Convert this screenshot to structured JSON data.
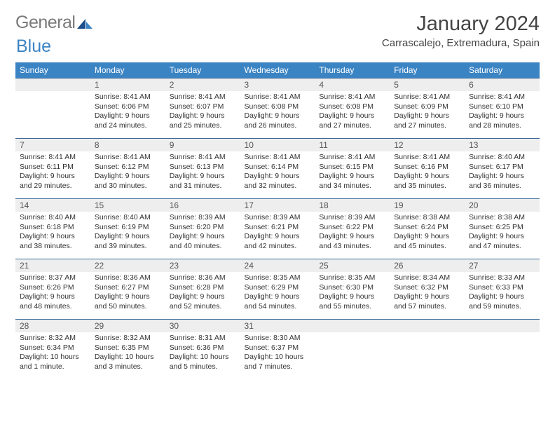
{
  "brand": {
    "part1": "General",
    "part2": "Blue"
  },
  "title": "January 2024",
  "location": "Carrascalejo, Extremadura, Spain",
  "colors": {
    "header_bg": "#3b84c4",
    "header_text": "#ffffff",
    "daynum_bg": "#eeeeee",
    "rule": "#3b6a9a",
    "body_text": "#333333"
  },
  "weekdays": [
    "Sunday",
    "Monday",
    "Tuesday",
    "Wednesday",
    "Thursday",
    "Friday",
    "Saturday"
  ],
  "weeks": [
    [
      null,
      {
        "n": "1",
        "sr": "Sunrise: 8:41 AM",
        "ss": "Sunset: 6:06 PM",
        "dl": "Daylight: 9 hours and 24 minutes."
      },
      {
        "n": "2",
        "sr": "Sunrise: 8:41 AM",
        "ss": "Sunset: 6:07 PM",
        "dl": "Daylight: 9 hours and 25 minutes."
      },
      {
        "n": "3",
        "sr": "Sunrise: 8:41 AM",
        "ss": "Sunset: 6:08 PM",
        "dl": "Daylight: 9 hours and 26 minutes."
      },
      {
        "n": "4",
        "sr": "Sunrise: 8:41 AM",
        "ss": "Sunset: 6:08 PM",
        "dl": "Daylight: 9 hours and 27 minutes."
      },
      {
        "n": "5",
        "sr": "Sunrise: 8:41 AM",
        "ss": "Sunset: 6:09 PM",
        "dl": "Daylight: 9 hours and 27 minutes."
      },
      {
        "n": "6",
        "sr": "Sunrise: 8:41 AM",
        "ss": "Sunset: 6:10 PM",
        "dl": "Daylight: 9 hours and 28 minutes."
      }
    ],
    [
      {
        "n": "7",
        "sr": "Sunrise: 8:41 AM",
        "ss": "Sunset: 6:11 PM",
        "dl": "Daylight: 9 hours and 29 minutes."
      },
      {
        "n": "8",
        "sr": "Sunrise: 8:41 AM",
        "ss": "Sunset: 6:12 PM",
        "dl": "Daylight: 9 hours and 30 minutes."
      },
      {
        "n": "9",
        "sr": "Sunrise: 8:41 AM",
        "ss": "Sunset: 6:13 PM",
        "dl": "Daylight: 9 hours and 31 minutes."
      },
      {
        "n": "10",
        "sr": "Sunrise: 8:41 AM",
        "ss": "Sunset: 6:14 PM",
        "dl": "Daylight: 9 hours and 32 minutes."
      },
      {
        "n": "11",
        "sr": "Sunrise: 8:41 AM",
        "ss": "Sunset: 6:15 PM",
        "dl": "Daylight: 9 hours and 34 minutes."
      },
      {
        "n": "12",
        "sr": "Sunrise: 8:41 AM",
        "ss": "Sunset: 6:16 PM",
        "dl": "Daylight: 9 hours and 35 minutes."
      },
      {
        "n": "13",
        "sr": "Sunrise: 8:40 AM",
        "ss": "Sunset: 6:17 PM",
        "dl": "Daylight: 9 hours and 36 minutes."
      }
    ],
    [
      {
        "n": "14",
        "sr": "Sunrise: 8:40 AM",
        "ss": "Sunset: 6:18 PM",
        "dl": "Daylight: 9 hours and 38 minutes."
      },
      {
        "n": "15",
        "sr": "Sunrise: 8:40 AM",
        "ss": "Sunset: 6:19 PM",
        "dl": "Daylight: 9 hours and 39 minutes."
      },
      {
        "n": "16",
        "sr": "Sunrise: 8:39 AM",
        "ss": "Sunset: 6:20 PM",
        "dl": "Daylight: 9 hours and 40 minutes."
      },
      {
        "n": "17",
        "sr": "Sunrise: 8:39 AM",
        "ss": "Sunset: 6:21 PM",
        "dl": "Daylight: 9 hours and 42 minutes."
      },
      {
        "n": "18",
        "sr": "Sunrise: 8:39 AM",
        "ss": "Sunset: 6:22 PM",
        "dl": "Daylight: 9 hours and 43 minutes."
      },
      {
        "n": "19",
        "sr": "Sunrise: 8:38 AM",
        "ss": "Sunset: 6:24 PM",
        "dl": "Daylight: 9 hours and 45 minutes."
      },
      {
        "n": "20",
        "sr": "Sunrise: 8:38 AM",
        "ss": "Sunset: 6:25 PM",
        "dl": "Daylight: 9 hours and 47 minutes."
      }
    ],
    [
      {
        "n": "21",
        "sr": "Sunrise: 8:37 AM",
        "ss": "Sunset: 6:26 PM",
        "dl": "Daylight: 9 hours and 48 minutes."
      },
      {
        "n": "22",
        "sr": "Sunrise: 8:36 AM",
        "ss": "Sunset: 6:27 PM",
        "dl": "Daylight: 9 hours and 50 minutes."
      },
      {
        "n": "23",
        "sr": "Sunrise: 8:36 AM",
        "ss": "Sunset: 6:28 PM",
        "dl": "Daylight: 9 hours and 52 minutes."
      },
      {
        "n": "24",
        "sr": "Sunrise: 8:35 AM",
        "ss": "Sunset: 6:29 PM",
        "dl": "Daylight: 9 hours and 54 minutes."
      },
      {
        "n": "25",
        "sr": "Sunrise: 8:35 AM",
        "ss": "Sunset: 6:30 PM",
        "dl": "Daylight: 9 hours and 55 minutes."
      },
      {
        "n": "26",
        "sr": "Sunrise: 8:34 AM",
        "ss": "Sunset: 6:32 PM",
        "dl": "Daylight: 9 hours and 57 minutes."
      },
      {
        "n": "27",
        "sr": "Sunrise: 8:33 AM",
        "ss": "Sunset: 6:33 PM",
        "dl": "Daylight: 9 hours and 59 minutes."
      }
    ],
    [
      {
        "n": "28",
        "sr": "Sunrise: 8:32 AM",
        "ss": "Sunset: 6:34 PM",
        "dl": "Daylight: 10 hours and 1 minute."
      },
      {
        "n": "29",
        "sr": "Sunrise: 8:32 AM",
        "ss": "Sunset: 6:35 PM",
        "dl": "Daylight: 10 hours and 3 minutes."
      },
      {
        "n": "30",
        "sr": "Sunrise: 8:31 AM",
        "ss": "Sunset: 6:36 PM",
        "dl": "Daylight: 10 hours and 5 minutes."
      },
      {
        "n": "31",
        "sr": "Sunrise: 8:30 AM",
        "ss": "Sunset: 6:37 PM",
        "dl": "Daylight: 10 hours and 7 minutes."
      },
      null,
      null,
      null
    ]
  ]
}
